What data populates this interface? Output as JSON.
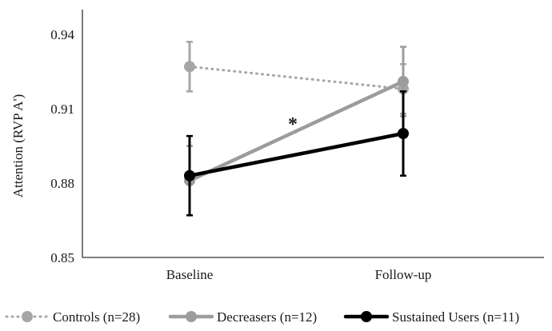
{
  "chart_data": {
    "type": "line",
    "title": "",
    "xlabel": "",
    "ylabel": "Attention (RVP A')",
    "categories": [
      "Baseline",
      "Follow-up"
    ],
    "ylim": [
      0.85,
      0.945
    ],
    "yticks": [
      0.85,
      0.88,
      0.91,
      0.94
    ],
    "ytick_labels": [
      "0.85",
      "0.88",
      "0.91",
      "0.94"
    ],
    "grid": false,
    "legend_position": "bottom",
    "annotations": [
      {
        "text": "*",
        "near": "Decreasers (n=12)"
      }
    ],
    "series": [
      {
        "name": "Controls (n=28)",
        "values": [
          0.927,
          0.918
        ],
        "err_low": [
          0.917,
          0.908
        ],
        "err_high": [
          0.937,
          0.928
        ],
        "color": "#a6a6a6",
        "line_style": "dotted"
      },
      {
        "name": "Decreasers (n=12)",
        "values": [
          0.881,
          0.921
        ],
        "err_low": [
          0.867,
          0.907
        ],
        "err_high": [
          0.895,
          0.935
        ],
        "color": "#9c9c9c",
        "line_style": "solid"
      },
      {
        "name": "Sustained Users (n=11)",
        "values": [
          0.883,
          0.9
        ],
        "err_low": [
          0.867,
          0.883
        ],
        "err_high": [
          0.899,
          0.917
        ],
        "color": "#000000",
        "line_style": "solid"
      }
    ]
  }
}
